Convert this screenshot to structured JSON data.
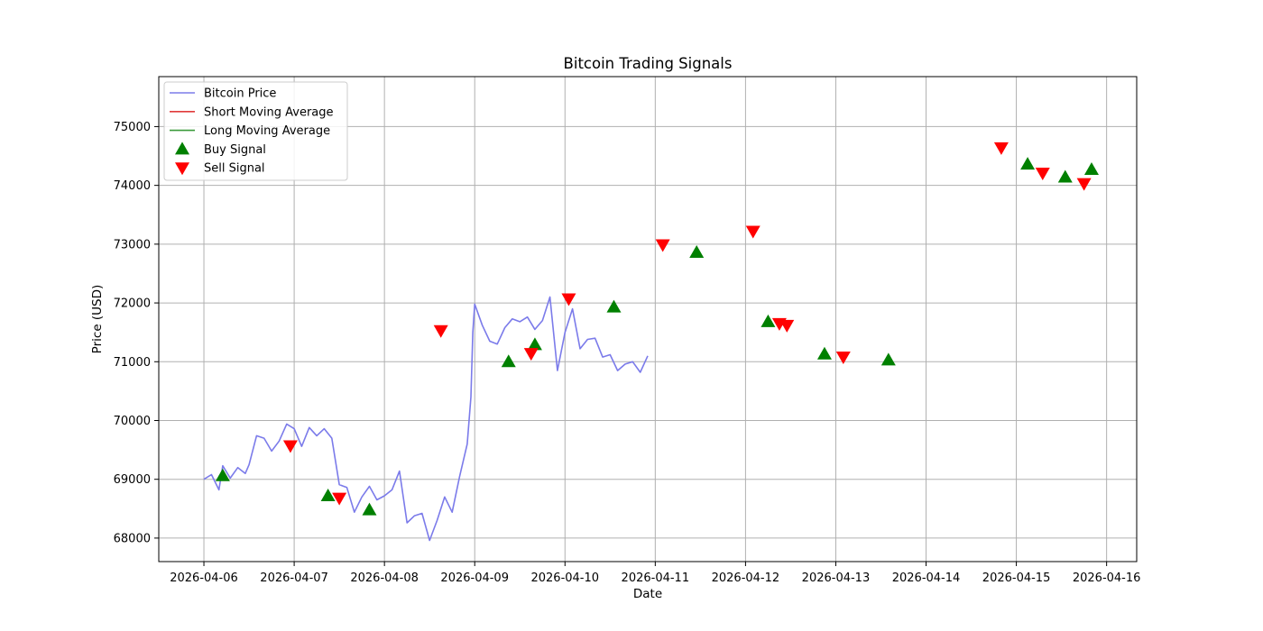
{
  "chart_data": {
    "type": "line",
    "title": "Bitcoin Trading Signals",
    "xlabel": "Date",
    "ylabel": "Price (USD)",
    "x_range": [
      "2026-04-05 12:00",
      "2026-04-16 08:00"
    ],
    "ylim": [
      67600,
      75850
    ],
    "grid": true,
    "legend_position": "upper left",
    "x_ticks": [
      "2026-04-06",
      "2026-04-07",
      "2026-04-08",
      "2026-04-09",
      "2026-04-10",
      "2026-04-11",
      "2026-04-12",
      "2026-04-13",
      "2026-04-14",
      "2026-04-15",
      "2026-04-16"
    ],
    "y_ticks": [
      68000,
      69000,
      70000,
      71000,
      72000,
      73000,
      74000,
      75000
    ],
    "series": [
      {
        "name": "Bitcoin Price",
        "style": "line",
        "color": "#7b7bea",
        "points": [
          [
            "2026-04-06 00:00",
            69000
          ],
          [
            "2026-04-06 02:00",
            69080
          ],
          [
            "2026-04-06 04:00",
            68820
          ],
          [
            "2026-04-06 05:00",
            69230
          ],
          [
            "2026-04-06 07:00",
            69020
          ],
          [
            "2026-04-06 09:00",
            69200
          ],
          [
            "2026-04-06 11:00",
            69100
          ],
          [
            "2026-04-06 12:00",
            69250
          ],
          [
            "2026-04-06 14:00",
            69740
          ],
          [
            "2026-04-06 16:00",
            69700
          ],
          [
            "2026-04-06 18:00",
            69480
          ],
          [
            "2026-04-06 20:00",
            69650
          ],
          [
            "2026-04-06 22:00",
            69940
          ],
          [
            "2026-04-07 00:00",
            69860
          ],
          [
            "2026-04-07 02:00",
            69560
          ],
          [
            "2026-04-07 04:00",
            69880
          ],
          [
            "2026-04-07 06:00",
            69740
          ],
          [
            "2026-04-07 08:00",
            69860
          ],
          [
            "2026-04-07 10:00",
            69700
          ],
          [
            "2026-04-07 12:00",
            68910
          ],
          [
            "2026-04-07 14:00",
            68860
          ],
          [
            "2026-04-07 16:00",
            68440
          ],
          [
            "2026-04-07 18:00",
            68700
          ],
          [
            "2026-04-07 20:00",
            68880
          ],
          [
            "2026-04-07 22:00",
            68650
          ],
          [
            "2026-04-08 00:00",
            68720
          ],
          [
            "2026-04-08 02:00",
            68820
          ],
          [
            "2026-04-08 04:00",
            69140
          ],
          [
            "2026-04-08 06:00",
            68260
          ],
          [
            "2026-04-08 08:00",
            68380
          ],
          [
            "2026-04-08 10:00",
            68420
          ],
          [
            "2026-04-08 12:00",
            67960
          ],
          [
            "2026-04-08 14:00",
            68300
          ],
          [
            "2026-04-08 16:00",
            68700
          ],
          [
            "2026-04-08 18:00",
            68440
          ],
          [
            "2026-04-08 20:00",
            69050
          ],
          [
            "2026-04-08 22:00",
            69600
          ],
          [
            "2026-04-08 23:00",
            70400
          ],
          [
            "2026-04-08 23:30",
            71500
          ],
          [
            "2026-04-09 00:00",
            71980
          ],
          [
            "2026-04-09 02:00",
            71620
          ],
          [
            "2026-04-09 04:00",
            71350
          ],
          [
            "2026-04-09 06:00",
            71300
          ],
          [
            "2026-04-09 08:00",
            71580
          ],
          [
            "2026-04-09 10:00",
            71730
          ],
          [
            "2026-04-09 12:00",
            71680
          ],
          [
            "2026-04-09 14:00",
            71760
          ],
          [
            "2026-04-09 16:00",
            71550
          ],
          [
            "2026-04-09 18:00",
            71700
          ],
          [
            "2026-04-09 20:00",
            72100
          ],
          [
            "2026-04-09 22:00",
            70850
          ],
          [
            "2026-04-10 00:00",
            71500
          ],
          [
            "2026-04-10 02:00",
            71900
          ],
          [
            "2026-04-10 04:00",
            71220
          ],
          [
            "2026-04-10 06:00",
            71380
          ],
          [
            "2026-04-10 08:00",
            71400
          ],
          [
            "2026-04-10 10:00",
            71080
          ],
          [
            "2026-04-10 12:00",
            71120
          ],
          [
            "2026-04-10 14:00",
            70850
          ],
          [
            "2026-04-10 16:00",
            70960
          ],
          [
            "2026-04-10 18:00",
            71000
          ],
          [
            "2026-04-10 20:00",
            70820
          ],
          [
            "2026-04-10 22:00",
            71100
          ]
        ]
      },
      {
        "name": "Short Moving Average",
        "style": "line",
        "color": "#e03a3a",
        "points": []
      },
      {
        "name": "Long Moving Average",
        "style": "line",
        "color": "#3a9a3a",
        "points": []
      },
      {
        "name": "Buy Signal",
        "style": "marker-up",
        "color": "#008000",
        "points": [
          [
            "2026-04-06 05:00",
            69060
          ],
          [
            "2026-04-07 09:00",
            68720
          ],
          [
            "2026-04-07 20:00",
            68480
          ],
          [
            "2026-04-09 09:00",
            71000
          ],
          [
            "2026-04-09 16:00",
            71290
          ],
          [
            "2026-04-10 13:00",
            71930
          ],
          [
            "2026-04-11 11:00",
            72860
          ],
          [
            "2026-04-12 06:00",
            71680
          ],
          [
            "2026-04-12 21:00",
            71130
          ],
          [
            "2026-04-13 14:00",
            71030
          ],
          [
            "2026-04-15 03:00",
            74360
          ],
          [
            "2026-04-15 13:00",
            74140
          ],
          [
            "2026-04-15 20:00",
            74270
          ]
        ]
      },
      {
        "name": "Sell Signal",
        "style": "marker-down",
        "color": "#ff0000",
        "points": [
          [
            "2026-04-06 23:00",
            69570
          ],
          [
            "2026-04-07 12:00",
            68680
          ],
          [
            "2026-04-08 15:00",
            71530
          ],
          [
            "2026-04-09 15:00",
            71140
          ],
          [
            "2026-04-10 01:00",
            72070
          ],
          [
            "2026-04-11 02:00",
            72990
          ],
          [
            "2026-04-12 02:00",
            73220
          ],
          [
            "2026-04-12 09:00",
            71650
          ],
          [
            "2026-04-12 11:00",
            71620
          ],
          [
            "2026-04-13 02:00",
            71080
          ],
          [
            "2026-04-14 20:00",
            74640
          ],
          [
            "2026-04-15 07:00",
            74210
          ],
          [
            "2026-04-15 18:00",
            74030
          ]
        ]
      }
    ]
  }
}
